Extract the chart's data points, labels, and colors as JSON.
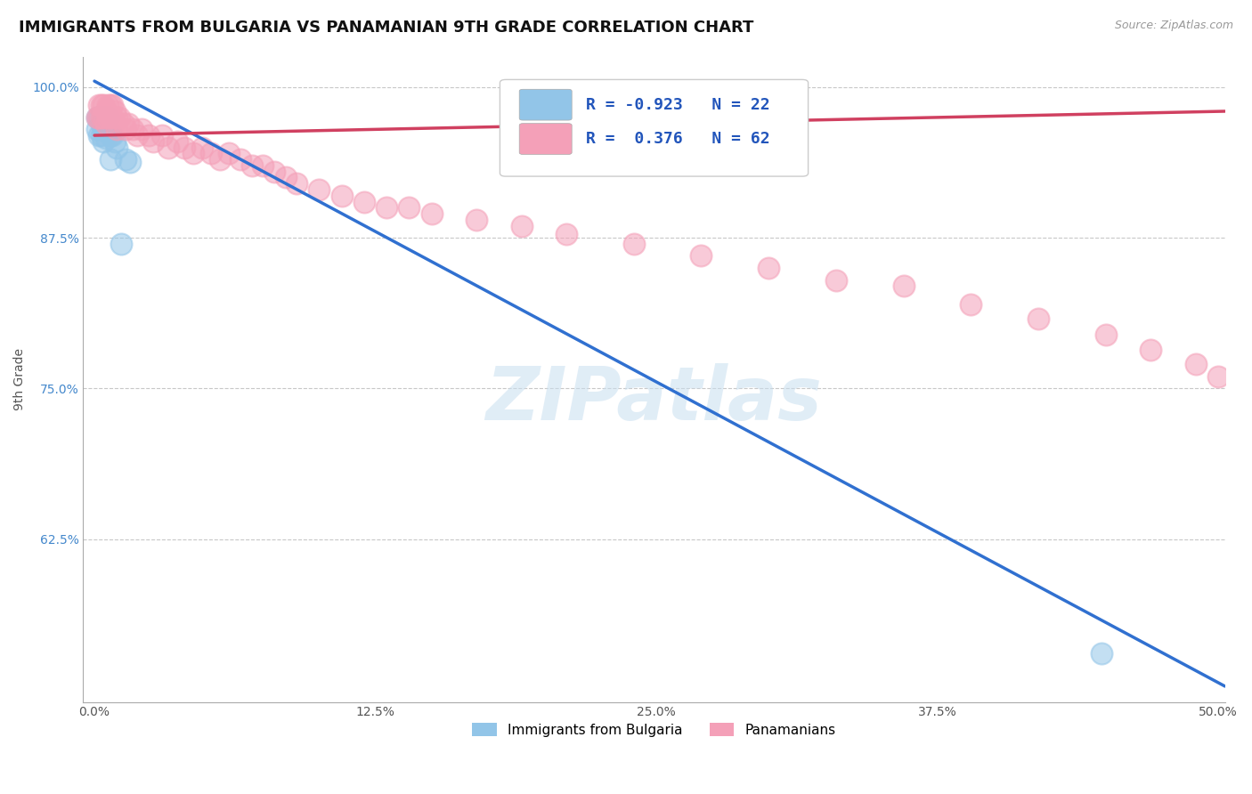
{
  "title": "IMMIGRANTS FROM BULGARIA VS PANAMANIAN 9TH GRADE CORRELATION CHART",
  "source_text": "Source: ZipAtlas.com",
  "xlabel": "",
  "ylabel": "9th Grade",
  "xlim": [
    -0.005,
    0.503
  ],
  "ylim": [
    0.49,
    1.025
  ],
  "xtick_labels": [
    "0.0%",
    "12.5%",
    "25.0%",
    "37.5%",
    "50.0%"
  ],
  "xtick_vals": [
    0.0,
    0.125,
    0.25,
    0.375,
    0.5
  ],
  "ytick_labels": [
    "62.5%",
    "75.0%",
    "87.5%",
    "100.0%"
  ],
  "ytick_vals": [
    0.625,
    0.75,
    0.875,
    1.0
  ],
  "watermark": "ZIPatlas",
  "legend_r_blue": "-0.923",
  "legend_n_blue": "22",
  "legend_r_pink": "0.376",
  "legend_n_pink": "62",
  "legend_label_blue": "Immigrants from Bulgaria",
  "legend_label_pink": "Panamanians",
  "blue_color": "#92c5e8",
  "pink_color": "#f4a0b8",
  "blue_line_color": "#3070d0",
  "pink_line_color": "#d04060",
  "blue_scatter_x": [
    0.001,
    0.001,
    0.002,
    0.002,
    0.003,
    0.003,
    0.004,
    0.004,
    0.004,
    0.005,
    0.005,
    0.006,
    0.006,
    0.007,
    0.007,
    0.008,
    0.009,
    0.01,
    0.012,
    0.014,
    0.016,
    0.448
  ],
  "blue_scatter_y": [
    0.965,
    0.975,
    0.975,
    0.96,
    0.97,
    0.96,
    0.975,
    0.965,
    0.955,
    0.97,
    0.958,
    0.975,
    0.965,
    0.96,
    0.94,
    0.96,
    0.955,
    0.95,
    0.87,
    0.94,
    0.938,
    0.53
  ],
  "pink_scatter_x": [
    0.001,
    0.002,
    0.002,
    0.003,
    0.003,
    0.004,
    0.004,
    0.005,
    0.005,
    0.006,
    0.006,
    0.007,
    0.007,
    0.008,
    0.008,
    0.009,
    0.01,
    0.01,
    0.011,
    0.013,
    0.014,
    0.015,
    0.017,
    0.019,
    0.021,
    0.024,
    0.026,
    0.03,
    0.033,
    0.037,
    0.04,
    0.044,
    0.048,
    0.052,
    0.056,
    0.06,
    0.065,
    0.07,
    0.075,
    0.08,
    0.085,
    0.09,
    0.1,
    0.11,
    0.12,
    0.13,
    0.14,
    0.15,
    0.17,
    0.19,
    0.21,
    0.24,
    0.27,
    0.3,
    0.33,
    0.36,
    0.39,
    0.42,
    0.45,
    0.47,
    0.49,
    0.5
  ],
  "pink_scatter_y": [
    0.975,
    0.985,
    0.975,
    0.985,
    0.975,
    0.985,
    0.975,
    0.98,
    0.97,
    0.985,
    0.975,
    0.985,
    0.975,
    0.985,
    0.975,
    0.98,
    0.975,
    0.965,
    0.975,
    0.97,
    0.965,
    0.97,
    0.965,
    0.96,
    0.965,
    0.96,
    0.955,
    0.96,
    0.95,
    0.955,
    0.95,
    0.945,
    0.95,
    0.945,
    0.94,
    0.945,
    0.94,
    0.935,
    0.935,
    0.93,
    0.925,
    0.92,
    0.915,
    0.91,
    0.905,
    0.9,
    0.9,
    0.895,
    0.89,
    0.885,
    0.878,
    0.87,
    0.86,
    0.85,
    0.84,
    0.835,
    0.82,
    0.808,
    0.795,
    0.782,
    0.77,
    0.76
  ],
  "blue_line_x": [
    0.0,
    0.503
  ],
  "blue_line_y": [
    1.005,
    0.503
  ],
  "pink_line_x": [
    0.0,
    0.503
  ],
  "pink_line_y": [
    0.96,
    0.98
  ],
  "title_fontsize": 13,
  "axis_label_fontsize": 10,
  "tick_fontsize": 10,
  "scatter_size": 300,
  "scatter_lw": 1.5,
  "background_color": "#ffffff",
  "grid_color": "#c8c8c8"
}
